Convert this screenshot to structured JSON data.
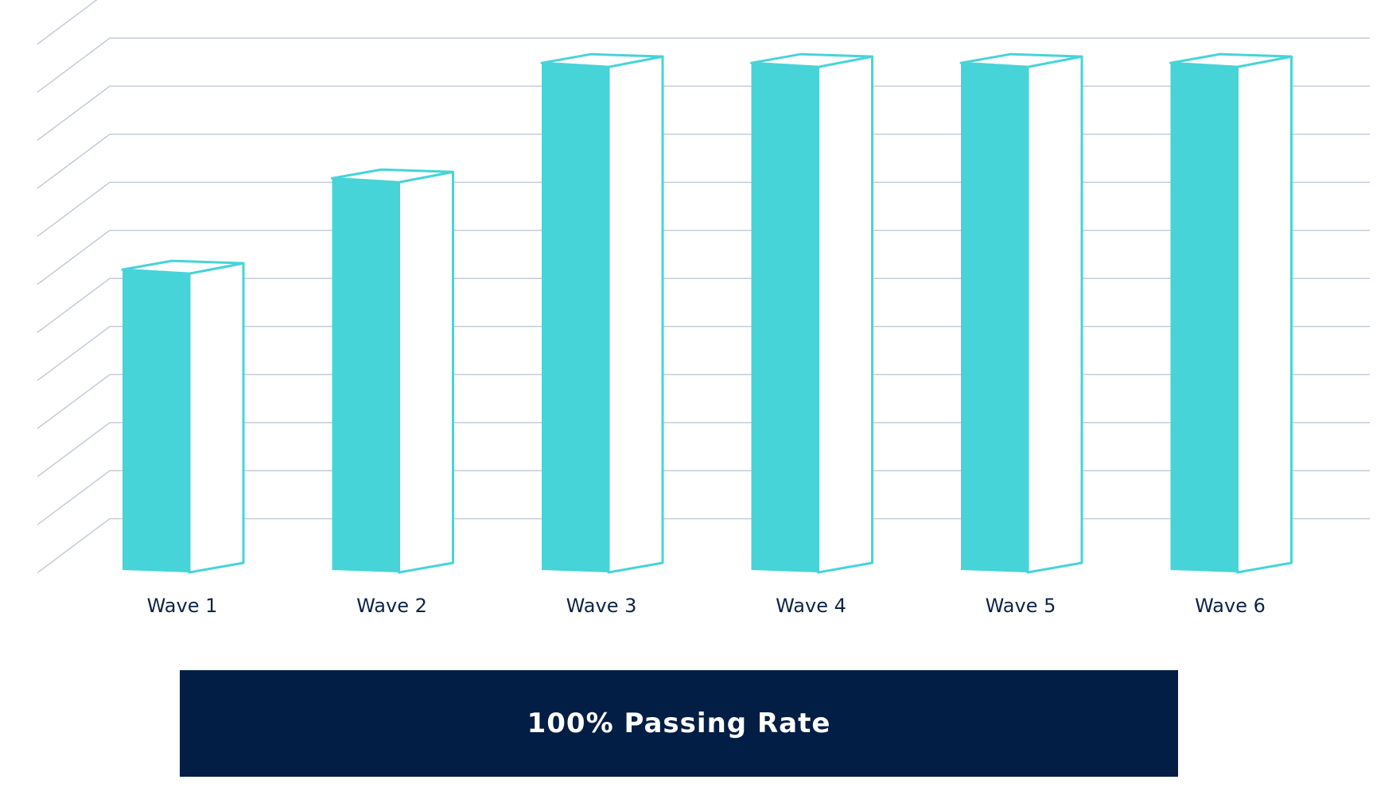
{
  "chart_data": {
    "type": "bar",
    "style": "3d-columns",
    "categories": [
      "Wave 1",
      "Wave 2",
      "Wave 3",
      "Wave 4",
      "Wave 5",
      "Wave 6"
    ],
    "values": [
      63,
      82,
      106,
      106,
      106,
      106
    ],
    "ylim": [
      0,
      110
    ],
    "grid": true,
    "title": "",
    "xlabel": "",
    "ylabel": ""
  },
  "banner": {
    "text": "100% Passing Rate"
  },
  "colors": {
    "bar_face": "#46d4d8",
    "bar_outline": "#46d4d8",
    "grid": "#c4ccd6",
    "label": "#0e2347",
    "banner_bg": "#031e45",
    "banner_text": "#ffffff"
  }
}
